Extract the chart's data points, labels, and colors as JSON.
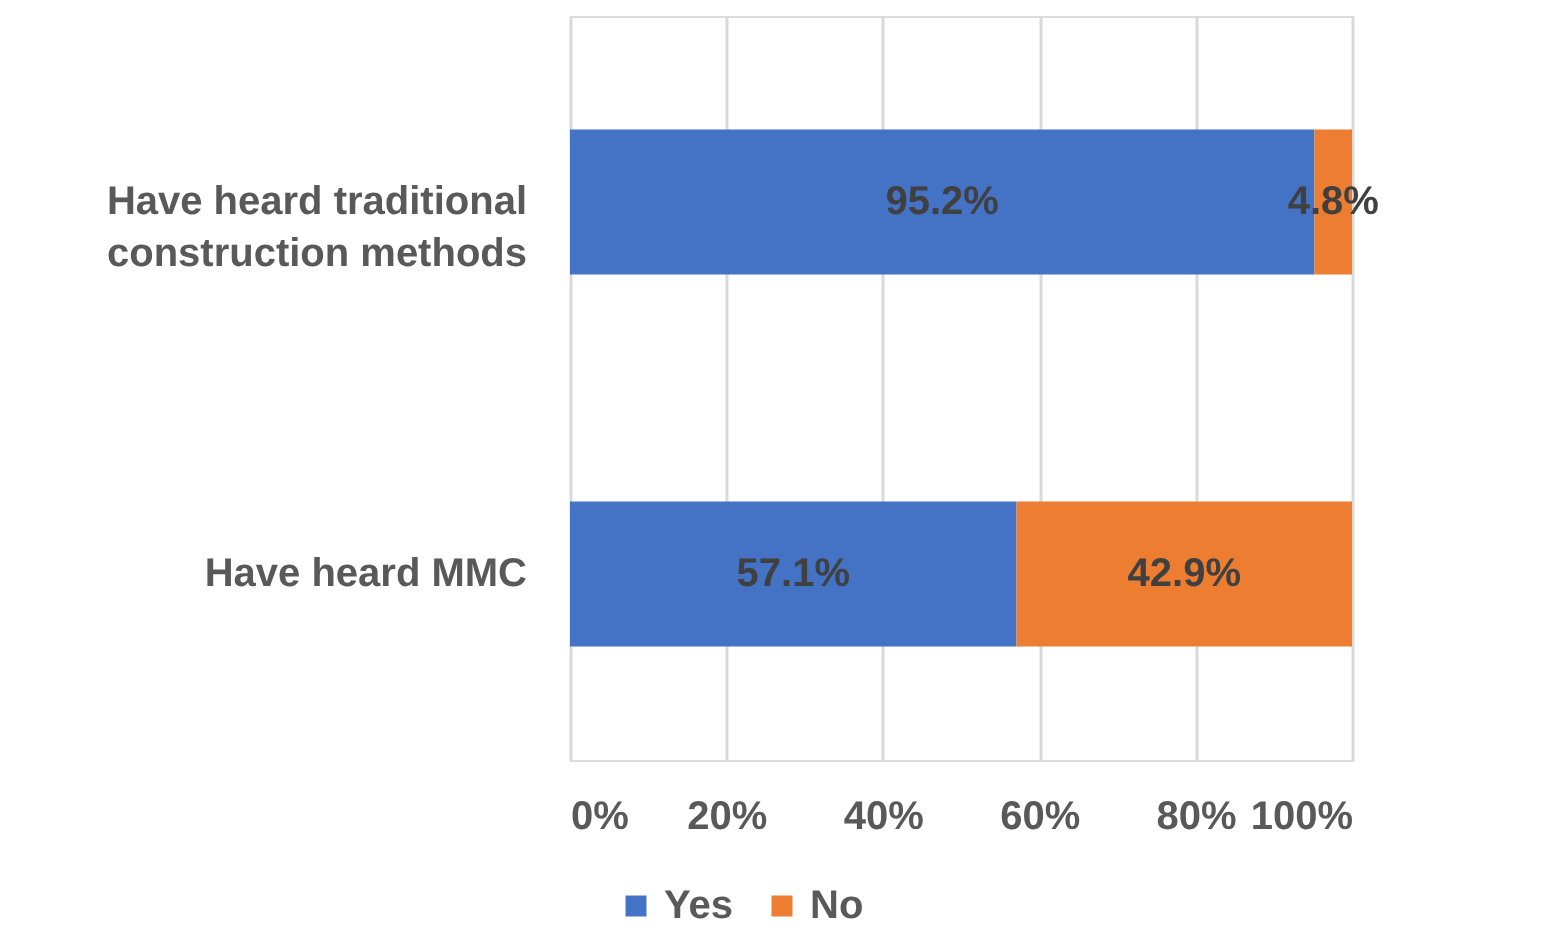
{
  "chart_data": {
    "type": "bar",
    "orientation": "horizontal",
    "stacked": true,
    "categories": [
      "Have heard traditional construction methods",
      "Have heard MMC"
    ],
    "series": [
      {
        "name": "Yes",
        "color": "#4472c4",
        "values": [
          95.2,
          57.1
        ],
        "value_labels": [
          "95.2%",
          "57.1%"
        ]
      },
      {
        "name": "No",
        "color": "#ed7d31",
        "values": [
          4.8,
          42.9
        ],
        "value_labels": [
          "4.8%",
          "42.9%"
        ]
      }
    ],
    "xlim": [
      0,
      100
    ],
    "xticks": [
      {
        "value": 0,
        "label": "0%"
      },
      {
        "value": 20,
        "label": "20%"
      },
      {
        "value": 40,
        "label": "40%"
      },
      {
        "value": 60,
        "label": "60%"
      },
      {
        "value": 80,
        "label": "80%"
      },
      {
        "value": 100,
        "label": "100%"
      }
    ],
    "grid": "x",
    "legend": "bottom"
  }
}
